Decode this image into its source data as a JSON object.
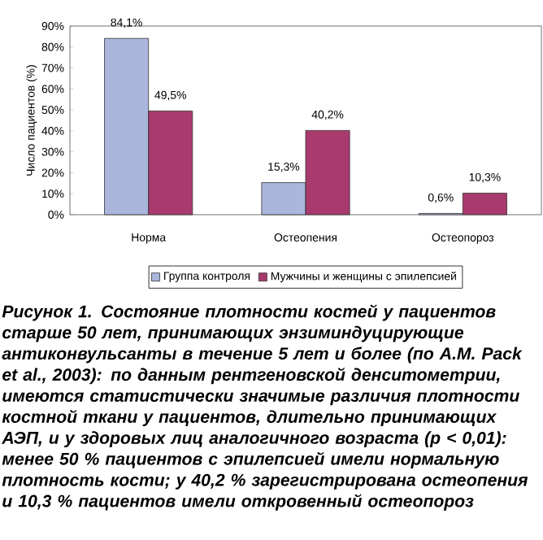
{
  "chart_data": {
    "type": "bar",
    "ylabel": "Число пациентов (%)",
    "categories": [
      "Норма",
      "Остеопения",
      "Остеопороз"
    ],
    "series": [
      {
        "name": "Группа контроля",
        "color": "#aab6dc",
        "values": [
          84.1,
          15.3,
          0.6
        ],
        "value_labels": [
          "84,1%",
          "15,3%",
          "0,6%"
        ]
      },
      {
        "name": "Мужчины и женщины с эпилепсией",
        "color": "#a83a6e",
        "values": [
          49.5,
          40.2,
          10.3
        ],
        "value_labels": [
          "49,5%",
          "40,2%",
          "10,3%"
        ]
      }
    ],
    "ylim": [
      0,
      90
    ],
    "yticks": [
      {
        "value": 0,
        "label": "0%"
      },
      {
        "value": 10,
        "label": "10%"
      },
      {
        "value": 20,
        "label": "20%"
      },
      {
        "value": 30,
        "label": "30%"
      },
      {
        "value": 40,
        "label": "40%"
      },
      {
        "value": 50,
        "label": "50%"
      },
      {
        "value": 60,
        "label": "60%"
      },
      {
        "value": 70,
        "label": "70%"
      },
      {
        "value": 80,
        "label": "80%"
      },
      {
        "value": 90,
        "label": "90%"
      }
    ],
    "legend": "bottom",
    "annotations": [
      "Рисунок 1. Состояние плотности костей у пациентов старше 50 лет, принимающих энзиминдуцирующие антиконвульсанты в течение 5 лет и более (по A.M. Pack et al., 2003): по данным рентгеновской денситометрии, имеются статистически значимые различия плотности костной ткани у пациентов, длительно принимающих АЭП, и у здоровых лиц аналогичного возраста (p < 0,01): менее 50 % пациентов с эпилепсией имели нормальную плотность кости; у 40,2 % зарегистрирована остеопения и 10,3 % пациентов имели откровенный остеопороз"
    ]
  }
}
